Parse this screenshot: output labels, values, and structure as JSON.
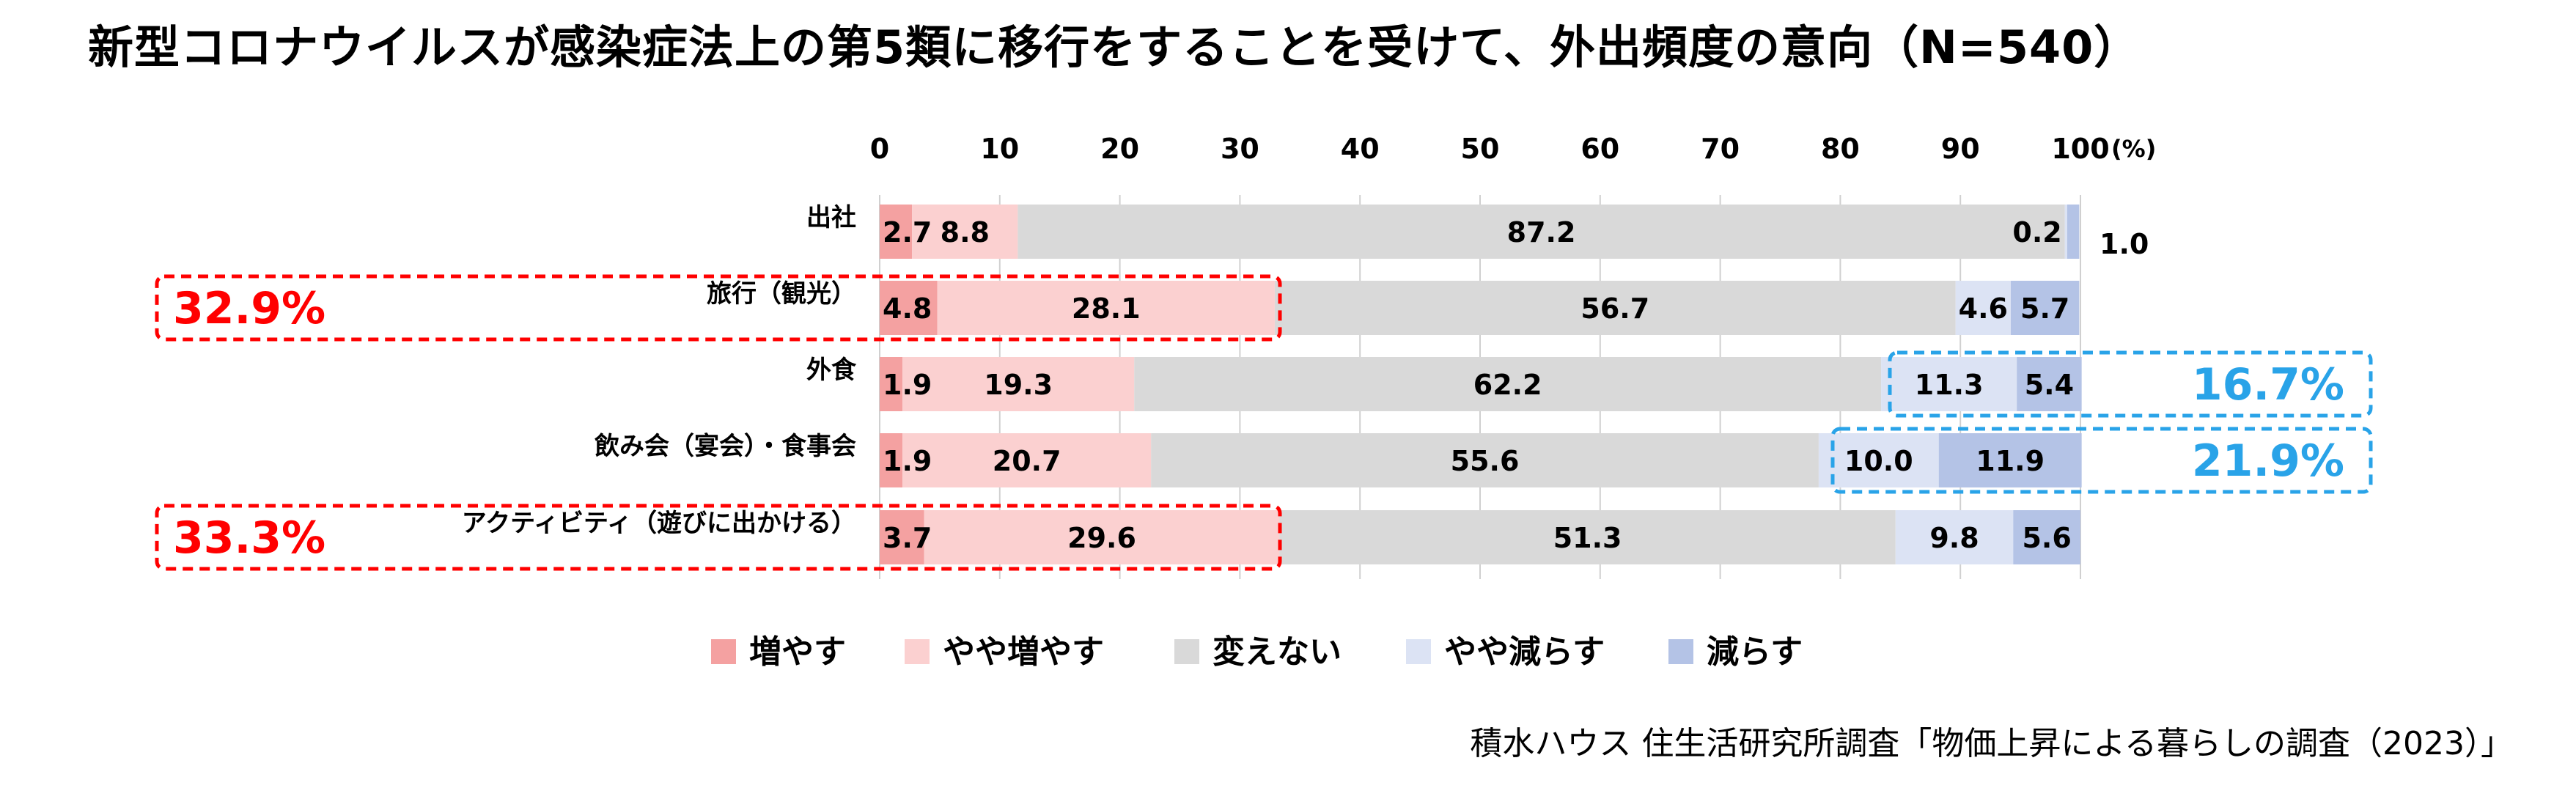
{
  "title": "新型コロナウイルスが感染症法上の第5類に移行をすることを受けて、外出頻度の意向（N=540）",
  "source": "積水ハウス 住生活研究所調査「物価上昇による暮らしの調査（2023）」",
  "chart_data": {
    "type": "bar",
    "orientation": "horizontal",
    "stacked": true,
    "x_ticks": [
      0,
      10,
      20,
      30,
      40,
      50,
      60,
      70,
      80,
      90,
      100
    ],
    "x_unit": "(%)",
    "xlim": [
      0,
      100
    ],
    "grid": true,
    "legend_position": "bottom",
    "categories": [
      "出社",
      "旅行（観光）",
      "外食",
      "飲み会（宴会）・食事会",
      "アクティビティ（遊びに出かける）"
    ],
    "series": [
      {
        "name": "増やす",
        "color": "#f4a1a1",
        "values": [
          2.7,
          4.8,
          1.9,
          1.9,
          3.7
        ]
      },
      {
        "name": "やや増やす",
        "color": "#fbd0d0",
        "values": [
          8.8,
          28.1,
          19.3,
          20.7,
          29.6
        ]
      },
      {
        "name": "変えない",
        "color": "#d9d9d9",
        "values": [
          87.2,
          56.7,
          62.2,
          55.6,
          51.3
        ]
      },
      {
        "name": "やや減らす",
        "color": "#dce3f4",
        "values": [
          0.2,
          4.6,
          11.3,
          10.0,
          9.8
        ]
      },
      {
        "name": "減らす",
        "color": "#b4c3e6",
        "values": [
          1.0,
          5.7,
          5.4,
          11.9,
          5.6
        ]
      }
    ],
    "value_labels": [
      [
        "2.7",
        "8.8",
        "87.2",
        "0.2",
        "1.0"
      ],
      [
        "4.8",
        "28.1",
        "56.7",
        "4.6",
        "5.7"
      ],
      [
        "1.9",
        "19.3",
        "62.2",
        "11.3",
        "5.4"
      ],
      [
        "1.9",
        "20.7",
        "55.6",
        "10.0",
        "11.9"
      ],
      [
        "3.7",
        "29.6",
        "51.3",
        "9.8",
        "5.6"
      ]
    ],
    "callouts": [
      {
        "category": "旅行（観光）",
        "text": "32.9%",
        "side": "increase",
        "color": "#ff0000"
      },
      {
        "category": "外食",
        "text": "16.7%",
        "side": "decrease",
        "color": "#29a3e8"
      },
      {
        "category": "飲み会（宴会）・食事会",
        "text": "21.9%",
        "side": "decrease",
        "color": "#29a3e8"
      },
      {
        "category": "アクティビティ（遊びに出かける）",
        "text": "33.3%",
        "side": "increase",
        "color": "#ff0000"
      }
    ]
  }
}
